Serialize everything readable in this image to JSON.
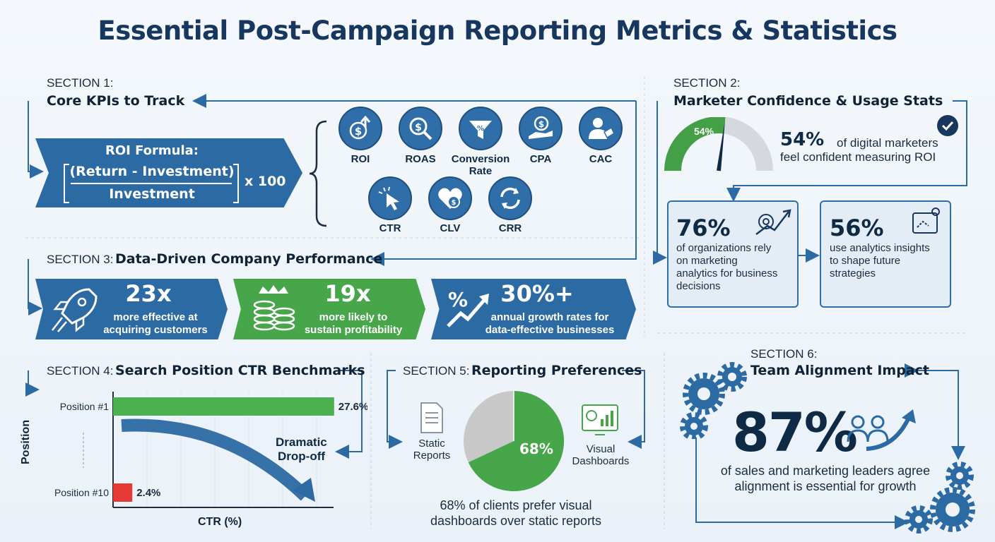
{
  "title": "Essential Post-Campaign Reporting Metrics & Statistics",
  "colors": {
    "navy": "#17375e",
    "blue": "#2c6aa3",
    "green": "#4caf50",
    "red": "#e53935",
    "gray": "#c9c9c9"
  },
  "section1": {
    "label": "SECTION 1:",
    "heading": "Core KPIs to Track",
    "roi_formula": {
      "title": "ROI Formula:",
      "numerator": "(Return - Investment)",
      "denominator": "Investment",
      "multiplier": "x 100"
    },
    "kpis": [
      {
        "label": "ROI",
        "icon": "dollar-arrow-icon"
      },
      {
        "label": "ROAS",
        "icon": "magnifier-dollar-icon"
      },
      {
        "label": "Conversion Rate",
        "icon": "funnel-percent-icon"
      },
      {
        "label": "CPA",
        "icon": "hand-coin-icon"
      },
      {
        "label": "CAC",
        "icon": "person-tag-icon"
      },
      {
        "label": "CTR",
        "icon": "cursor-click-icon"
      },
      {
        "label": "CLV",
        "icon": "heart-dollar-icon"
      },
      {
        "label": "CRR",
        "icon": "refresh-arrows-icon"
      }
    ]
  },
  "section2": {
    "label": "SECTION 2:",
    "heading": "Marketer Confidence & Usage Stats",
    "gauge": {
      "value": 54,
      "label": "54%"
    },
    "confidence": {
      "pct": "54%",
      "text1": "of digital marketers",
      "text2": "feel confident measuring ROI"
    },
    "card1": {
      "pct": "76%",
      "lines": [
        "of organizations rely",
        "on marketing",
        "analytics for business",
        "decisions"
      ]
    },
    "card2": {
      "pct": "56%",
      "lines": [
        "use analytics insights",
        "to shape future",
        "strategies"
      ]
    }
  },
  "section3": {
    "label": "SECTION 3:",
    "heading": "Data-Driven Company Performance",
    "banners": [
      {
        "big": "23x",
        "line1": "more effective at",
        "line2": "acquiring customers",
        "icon": "rocket-icon"
      },
      {
        "big": "19x",
        "line1": "more likely to",
        "line2": "sustain profitability",
        "icon": "coins-crown-icon"
      },
      {
        "big": "30%+",
        "line1": "annual growth rates for",
        "line2": "data-effective businesses",
        "icon": "percent-growth-icon"
      }
    ]
  },
  "section4": {
    "label": "SECTION 4:",
    "heading": "Search Position CTR Benchmarks",
    "ylabel": "Position",
    "xlabel": "CTR (%)",
    "annotation1": "Dramatic",
    "annotation2": "Drop-off"
  },
  "chart_data": {
    "type": "bar",
    "categories": [
      "Position #1",
      "Position #10"
    ],
    "values": [
      27.6,
      2.4
    ],
    "value_labels": [
      "27.6%",
      "2.4%"
    ],
    "orientation": "horizontal",
    "xlabel": "CTR (%)",
    "ylabel": "Position",
    "xlim": [
      0,
      30
    ],
    "grid": true
  },
  "section5": {
    "label": "SECTION 5:",
    "heading": "Reporting Preferences",
    "static_label1": "Static",
    "static_label2": "Reports",
    "visual_label1": "Visual",
    "visual_label2": "Dashboards",
    "pie": {
      "visual_pct": 68,
      "label": "68%"
    },
    "caption1": "68% of clients prefer visual",
    "caption2": "dashboards over static reports"
  },
  "section6": {
    "label": "SECTION 6:",
    "heading": "Team Alignment Impact",
    "pct": "87%",
    "text1": "of sales and marketing leaders agree",
    "text2": "alignment is essential for growth"
  }
}
